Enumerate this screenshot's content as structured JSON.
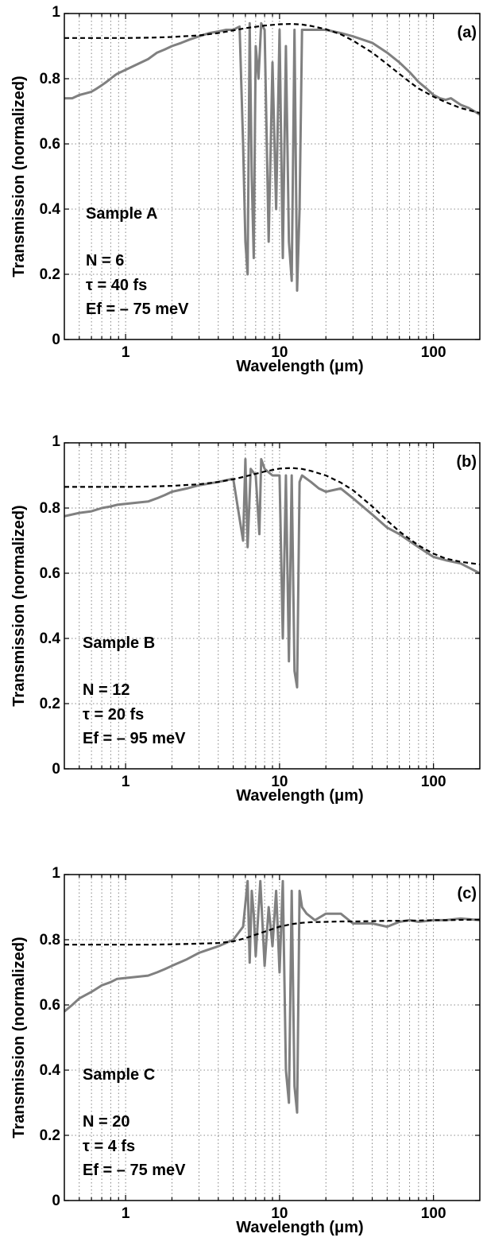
{
  "chart_data": [
    {
      "type": "line",
      "panel_label": "(a)",
      "xlabel": "Wavelength (μm)",
      "ylabel": "Transmission (normalized)",
      "xscale": "log",
      "xlim": [
        0.4,
        200
      ],
      "ylim": [
        0,
        1
      ],
      "xticks": [
        "1",
        "10",
        "100"
      ],
      "yticks": [
        "0",
        "0.2",
        "0.4",
        "0.6",
        "0.8",
        "1"
      ],
      "grid": true,
      "annotations": [
        "Sample A",
        "N = 6",
        "τ = 40 fs",
        "Ef = – 75 meV"
      ],
      "series": [
        {
          "style": "solid-gray",
          "x": [
            0.4,
            0.45,
            0.5,
            0.55,
            0.6,
            0.65,
            0.7,
            0.75,
            0.8,
            0.85,
            0.88,
            1.4,
            1.6,
            1.8,
            2.0,
            2.3,
            2.6,
            3.0,
            3.5,
            4.0,
            4.5,
            5.0,
            5.5,
            5.8,
            6.0,
            6.2,
            6.4,
            6.6,
            6.8,
            7.0,
            7.3,
            7.6,
            8.0,
            8.5,
            9.0,
            9.5,
            10.0,
            10.5,
            11.0,
            11.5,
            12.0,
            12.5,
            13.0,
            13.5,
            14.0,
            15,
            17,
            20,
            25,
            30,
            40,
            50,
            60,
            70,
            80,
            90,
            100,
            110,
            120,
            130,
            150,
            170,
            200
          ],
          "y": [
            0.74,
            0.74,
            0.75,
            0.755,
            0.76,
            0.77,
            0.78,
            0.79,
            0.8,
            0.81,
            0.815,
            0.86,
            0.88,
            0.89,
            0.9,
            0.91,
            0.92,
            0.93,
            0.94,
            0.945,
            0.95,
            0.95,
            0.96,
            0.6,
            0.3,
            0.2,
            0.97,
            0.5,
            0.25,
            0.9,
            0.8,
            0.97,
            0.95,
            0.3,
            0.85,
            0.4,
            0.95,
            0.25,
            0.9,
            0.3,
            0.18,
            0.95,
            0.15,
            0.4,
            0.95,
            0.95,
            0.95,
            0.95,
            0.94,
            0.93,
            0.91,
            0.88,
            0.85,
            0.82,
            0.79,
            0.77,
            0.75,
            0.74,
            0.735,
            0.74,
            0.72,
            0.71,
            0.69
          ]
        },
        {
          "style": "dashed-black",
          "x": [
            0.4,
            0.6,
            1,
            1.5,
            2,
            3,
            4,
            5,
            6,
            8,
            10,
            12,
            14,
            16,
            20,
            25,
            30,
            40,
            50,
            60,
            70,
            80,
            100,
            120,
            150,
            200
          ],
          "y": [
            0.925,
            0.925,
            0.925,
            0.926,
            0.928,
            0.933,
            0.94,
            0.948,
            0.955,
            0.963,
            0.967,
            0.968,
            0.966,
            0.962,
            0.952,
            0.936,
            0.917,
            0.88,
            0.845,
            0.815,
            0.79,
            0.77,
            0.745,
            0.728,
            0.71,
            0.695
          ]
        }
      ]
    },
    {
      "type": "line",
      "panel_label": "(b)",
      "xlabel": "Wavelength (μm)",
      "ylabel": "Transmission (normalized)",
      "xscale": "log",
      "xlim": [
        0.4,
        200
      ],
      "ylim": [
        0,
        1
      ],
      "xticks": [
        "1",
        "10",
        "100"
      ],
      "yticks": [
        "0",
        "0.2",
        "0.4",
        "0.6",
        "0.8",
        "1"
      ],
      "grid": true,
      "annotations": [
        "Sample B",
        "N = 12",
        "τ = 20 fs",
        "Ef = – 95 meV"
      ],
      "series": [
        {
          "style": "solid-gray",
          "x": [
            0.4,
            0.5,
            0.6,
            0.7,
            0.8,
            0.88,
            1.4,
            1.6,
            1.8,
            2.0,
            2.5,
            3.0,
            4.0,
            5.0,
            5.8,
            6.0,
            6.2,
            6.5,
            7.0,
            7.4,
            7.6,
            8.0,
            9.0,
            10.0,
            10.5,
            11.0,
            11.5,
            12.0,
            12.5,
            13.0,
            13.5,
            14.0,
            16,
            18,
            20,
            25,
            30,
            40,
            50,
            60,
            80,
            100,
            120,
            150,
            200
          ],
          "y": [
            0.775,
            0.785,
            0.79,
            0.8,
            0.805,
            0.81,
            0.82,
            0.83,
            0.84,
            0.85,
            0.86,
            0.87,
            0.88,
            0.89,
            0.7,
            0.95,
            0.68,
            0.92,
            0.9,
            0.72,
            0.95,
            0.92,
            0.9,
            0.9,
            0.4,
            0.9,
            0.33,
            0.9,
            0.3,
            0.25,
            0.88,
            0.9,
            0.88,
            0.86,
            0.85,
            0.86,
            0.83,
            0.78,
            0.74,
            0.72,
            0.68,
            0.65,
            0.64,
            0.63,
            0.6
          ]
        },
        {
          "style": "dashed-black",
          "x": [
            0.4,
            0.6,
            1,
            1.5,
            2,
            3,
            4,
            5,
            6,
            8,
            10,
            12,
            14,
            16,
            20,
            25,
            30,
            40,
            50,
            60,
            80,
            100,
            120,
            150,
            200
          ],
          "y": [
            0.865,
            0.865,
            0.865,
            0.866,
            0.868,
            0.873,
            0.88,
            0.888,
            0.897,
            0.912,
            0.921,
            0.923,
            0.92,
            0.914,
            0.9,
            0.878,
            0.855,
            0.805,
            0.762,
            0.728,
            0.685,
            0.66,
            0.645,
            0.635,
            0.627
          ]
        }
      ]
    },
    {
      "type": "line",
      "panel_label": "(c)",
      "xlabel": "Wavelength (μm)",
      "ylabel": "Transmission (normalized)",
      "xscale": "log",
      "xlim": [
        0.4,
        200
      ],
      "ylim": [
        0,
        1
      ],
      "xticks": [
        "1",
        "10",
        "100"
      ],
      "yticks": [
        "0",
        "0.2",
        "0.4",
        "0.6",
        "0.8",
        "1"
      ],
      "grid": true,
      "annotations": [
        "Sample C",
        "N = 20",
        "τ = 4 fs",
        "Ef = – 75 meV"
      ],
      "series": [
        {
          "style": "solid-gray",
          "x": [
            0.4,
            0.45,
            0.5,
            0.6,
            0.7,
            0.8,
            0.88,
            1.4,
            1.6,
            1.8,
            2.0,
            2.5,
            3.0,
            4.0,
            5.0,
            5.8,
            6.2,
            6.4,
            6.6,
            6.8,
            7.0,
            7.5,
            8.0,
            8.5,
            9.0,
            9.5,
            10.0,
            10.5,
            11.0,
            11.5,
            12.0,
            12.5,
            13.0,
            13.5,
            14.0,
            15,
            17,
            20,
            25,
            30,
            40,
            50,
            60,
            70,
            80,
            100,
            120,
            150,
            200
          ],
          "y": [
            0.58,
            0.6,
            0.62,
            0.64,
            0.66,
            0.67,
            0.68,
            0.69,
            0.7,
            0.71,
            0.72,
            0.74,
            0.76,
            0.78,
            0.8,
            0.84,
            0.98,
            0.73,
            0.95,
            0.88,
            0.75,
            0.98,
            0.72,
            0.9,
            0.78,
            0.95,
            0.7,
            0.98,
            0.4,
            0.3,
            0.95,
            0.35,
            0.27,
            0.95,
            0.9,
            0.88,
            0.86,
            0.88,
            0.88,
            0.85,
            0.85,
            0.84,
            0.855,
            0.86,
            0.855,
            0.86,
            0.86,
            0.865,
            0.86
          ]
        },
        {
          "style": "dashed-black",
          "x": [
            0.4,
            0.6,
            1,
            1.5,
            2,
            3,
            4,
            5,
            6,
            8,
            10,
            12,
            14,
            16,
            20,
            25,
            30,
            40,
            50,
            60,
            80,
            100,
            120,
            150,
            200
          ],
          "y": [
            0.785,
            0.785,
            0.785,
            0.785,
            0.786,
            0.788,
            0.79,
            0.795,
            0.805,
            0.825,
            0.84,
            0.848,
            0.852,
            0.854,
            0.855,
            0.856,
            0.856,
            0.857,
            0.858,
            0.858,
            0.859,
            0.86,
            0.86,
            0.861,
            0.862
          ]
        }
      ]
    }
  ]
}
